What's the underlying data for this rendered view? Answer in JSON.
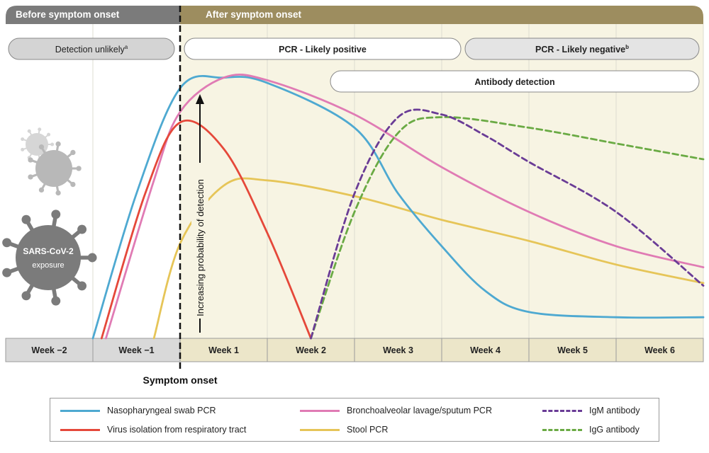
{
  "phases": {
    "before": "Before symptom onset",
    "after": "After symptom onset"
  },
  "pills": {
    "detection_unlikely": "Detection unlikely",
    "detection_unlikely_sup": "a",
    "pcr_positive": "PCR - Likely positive",
    "pcr_negative": "PCR - Likely negative",
    "pcr_negative_sup": "b",
    "antibody": "Antibody detection"
  },
  "virus_label": {
    "line1": "SARS-CoV-2",
    "line2": "exposure"
  },
  "y_axis_label": "Increasing probability of detection",
  "symptom_onset_label": "Symptom onset",
  "colors": {
    "header_before": "#7b7b7b",
    "header_after": "#9d8d5f",
    "nasopharyngeal": "#4ea9d1",
    "bronchoalveolar": "#e07bb4",
    "virus_isolation": "#e5483a",
    "stool": "#e6c558",
    "igm": "#6a3c96",
    "igg": "#6aaa44"
  },
  "chart_data": {
    "type": "line",
    "x_unit": "weeks relative to symptom onset",
    "categories": [
      "Week −2",
      "Week −1",
      "Week 1",
      "Week 2",
      "Week 3",
      "Week 4",
      "Week 5",
      "Week 6"
    ],
    "y_range": [
      0,
      1
    ],
    "series": [
      {
        "name": "Nasopharyngeal swab PCR",
        "style": "solid",
        "color": "#4ea9d1",
        "x": [
          -1.0,
          -0.5,
          0,
          0.5,
          1.0,
          2.0,
          2.5,
          3.0,
          3.5,
          4.0,
          5.0,
          6.0
        ],
        "y": [
          0.0,
          0.55,
          0.95,
          0.99,
          0.97,
          0.8,
          0.55,
          0.35,
          0.18,
          0.1,
          0.08,
          0.08
        ]
      },
      {
        "name": "Bronchoalveolar lavage/sputum PCR",
        "style": "solid",
        "color": "#e07bb4",
        "x": [
          -0.85,
          -0.3,
          0,
          0.5,
          1.0,
          2.0,
          3.0,
          4.0,
          5.0,
          6.0
        ],
        "y": [
          0.0,
          0.6,
          0.86,
          0.99,
          0.98,
          0.85,
          0.65,
          0.48,
          0.35,
          0.27
        ]
      },
      {
        "name": "Virus isolation from respiratory tract",
        "style": "solid",
        "color": "#e5483a",
        "x": [
          -0.9,
          -0.4,
          0,
          0.5,
          1.0,
          1.5
        ],
        "y": [
          0.0,
          0.55,
          0.82,
          0.72,
          0.4,
          0.0
        ]
      },
      {
        "name": "Stool PCR",
        "style": "solid",
        "color": "#e6c558",
        "x": [
          -0.3,
          0,
          0.5,
          1.0,
          2.0,
          3.0,
          4.0,
          5.0,
          6.0
        ],
        "y": [
          0.0,
          0.36,
          0.58,
          0.6,
          0.54,
          0.45,
          0.37,
          0.28,
          0.21
        ]
      },
      {
        "name": "IgM antibody",
        "style": "dashed",
        "color": "#6a3c96",
        "x": [
          1.5,
          2.0,
          2.5,
          3.0,
          3.5,
          4.0,
          5.0,
          6.0
        ],
        "y": [
          0.0,
          0.55,
          0.84,
          0.85,
          0.77,
          0.67,
          0.48,
          0.2
        ]
      },
      {
        "name": "IgG antibody",
        "style": "dashed",
        "color": "#6aaa44",
        "x": [
          1.5,
          2.0,
          2.5,
          3.0,
          4.0,
          5.0,
          6.0
        ],
        "y": [
          0.0,
          0.48,
          0.78,
          0.84,
          0.8,
          0.74,
          0.68
        ]
      }
    ]
  },
  "legend": {
    "nasopharyngeal": "Nasopharyngeal swab PCR",
    "virus_isolation": "Virus isolation from respiratory tract",
    "bronchoalveolar": "Bronchoalveolar lavage/sputum PCR",
    "stool": "Stool PCR",
    "igm": "IgM antibody",
    "igg": "IgG antibody"
  }
}
